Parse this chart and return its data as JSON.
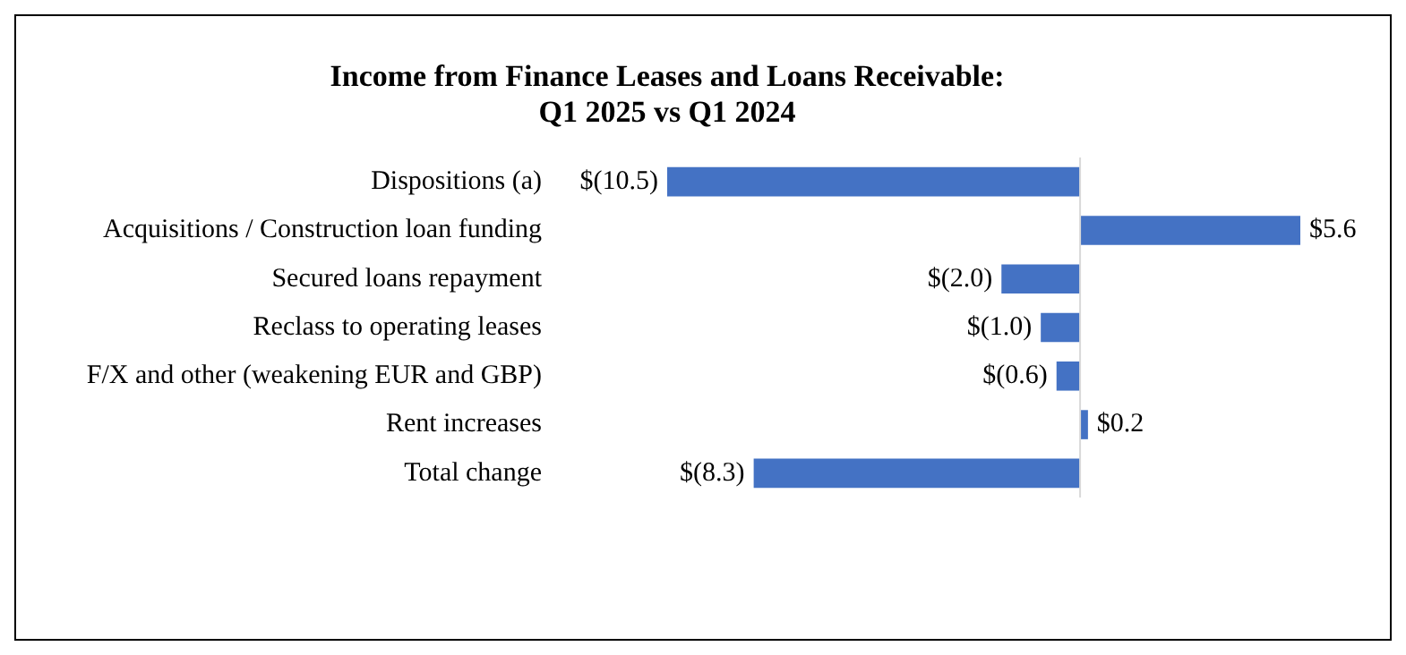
{
  "chart_data": {
    "type": "bar",
    "orientation": "horizontal",
    "title": "Income from Finance Leases and Loans Receivable: Q1 2025 vs Q1 2024",
    "categories": [
      "Dispositions (a)",
      "Acquisitions / Construction loan funding",
      "Secured loans repayment",
      "Reclass to operating leases",
      "F/X and other (weakening EUR and GBP)",
      "Rent increases",
      "Total change"
    ],
    "values": [
      -10.5,
      5.6,
      -2.0,
      -1.0,
      -0.6,
      0.2,
      -8.3
    ],
    "value_labels": [
      "$(10.5)",
      "$5.6",
      "$(2.0)",
      "$(1.0)",
      "$(0.6)",
      "$0.2",
      "$(8.3)"
    ],
    "color": "#4472c4",
    "grid": false,
    "legend": false,
    "tick_labels": "y"
  }
}
